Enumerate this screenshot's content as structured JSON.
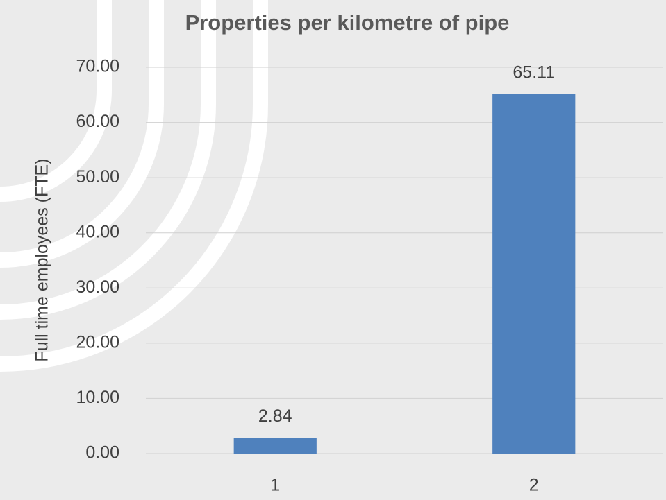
{
  "chart_data": {
    "type": "bar",
    "title": "Properties per kilometre of pipe",
    "y_label": "Full time employees (FTE)",
    "categories": [
      "1",
      "2"
    ],
    "values": [
      2.84,
      65.11
    ],
    "color": "#4f81bd",
    "ylim": [
      0,
      70
    ],
    "yticks": [
      {
        "value": 0,
        "label": "0.00"
      },
      {
        "value": 10,
        "label": "10.00"
      },
      {
        "value": 20,
        "label": "20.00"
      },
      {
        "value": 30,
        "label": "30.00"
      },
      {
        "value": 40,
        "label": "40.00"
      },
      {
        "value": 50,
        "label": "50.00"
      },
      {
        "value": 60,
        "label": "60.00"
      },
      {
        "value": 70,
        "label": "70.00"
      }
    ],
    "grid": true
  }
}
